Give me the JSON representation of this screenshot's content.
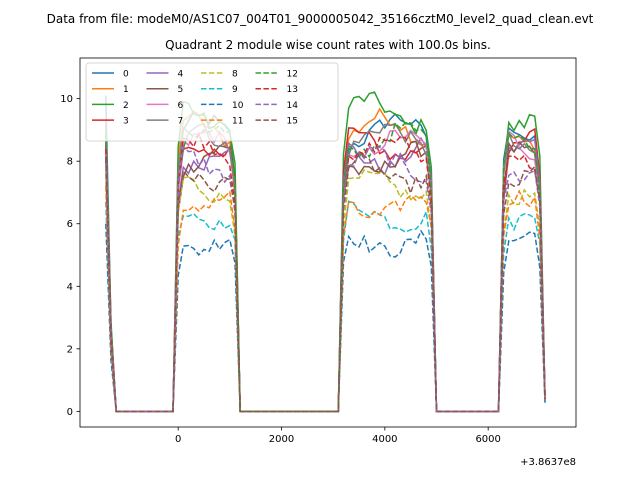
{
  "figure": {
    "suptitle": "Data from file: modeM0/AS1C07_004T01_9000005042_35166cztM0_level2_quad_clean.evt"
  },
  "chart_data": {
    "type": "line",
    "title": "Quadrant 2 module wise count rates with 100.0s bins.",
    "xlabel": "",
    "ylabel": "",
    "offset_text": "+3.8637e8",
    "xlim": [
      -1900,
      7700
    ],
    "ylim": [
      -0.5,
      11.3
    ],
    "xticks": [
      0,
      2000,
      4000,
      6000
    ],
    "yticks": [
      0,
      2,
      4,
      6,
      8,
      10
    ],
    "grid": false,
    "legend_position": "top-left",
    "legend_columns": 4,
    "series": [
      {
        "name": "0",
        "color": "#1f77b4",
        "style": "solid",
        "level": 8.95,
        "spike": 10.1
      },
      {
        "name": "1",
        "color": "#ff7f0e",
        "style": "solid",
        "level": 9.0,
        "spike": 9.1
      },
      {
        "name": "2",
        "color": "#2ca02c",
        "style": "solid",
        "level": 9.55,
        "spike": 9.2
      },
      {
        "name": "3",
        "color": "#d62728",
        "style": "solid",
        "level": 8.55,
        "spike": 8.6
      },
      {
        "name": "4",
        "color": "#9467bd",
        "style": "solid",
        "level": 8.2,
        "spike": 8.3
      },
      {
        "name": "5",
        "color": "#8c564b",
        "style": "solid",
        "level": 8.0,
        "spike": 8.5
      },
      {
        "name": "6",
        "color": "#e377c2",
        "style": "solid",
        "level": 8.45,
        "spike": 8.4
      },
      {
        "name": "7",
        "color": "#7f7f7f",
        "style": "solid",
        "level": 8.7,
        "spike": 9.3
      },
      {
        "name": "8",
        "color": "#bcbd22",
        "style": "dashed",
        "level": 7.15,
        "spike": 7.6
      },
      {
        "name": "9",
        "color": "#17becf",
        "style": "dashed",
        "level": 6.25,
        "spike": 6.7
      },
      {
        "name": "10",
        "color": "#1f77b4",
        "style": "dashed",
        "level": 5.4,
        "spike": 6.0
      },
      {
        "name": "11",
        "color": "#ff7f0e",
        "style": "dashed",
        "level": 6.55,
        "spike": 7.2
      },
      {
        "name": "12",
        "color": "#2ca02c",
        "style": "dashed",
        "level": 8.65,
        "spike": 8.9
      },
      {
        "name": "13",
        "color": "#d62728",
        "style": "dashed",
        "level": 8.3,
        "spike": 8.4
      },
      {
        "name": "14",
        "color": "#9467bd",
        "style": "dashed",
        "level": 7.9,
        "spike": 8.0
      },
      {
        "name": "15",
        "color": "#8c564b",
        "style": "dashed",
        "level": 7.6,
        "spike": 8.1
      }
    ],
    "segments": [
      {
        "start": -1400,
        "end": -1300
      },
      {
        "start": 0,
        "end": 1100
      },
      {
        "start": 3200,
        "end": 4900
      },
      {
        "start": 6300,
        "end": 7000
      }
    ],
    "x_first": -1400,
    "x_last": 7100,
    "bin": 100
  }
}
